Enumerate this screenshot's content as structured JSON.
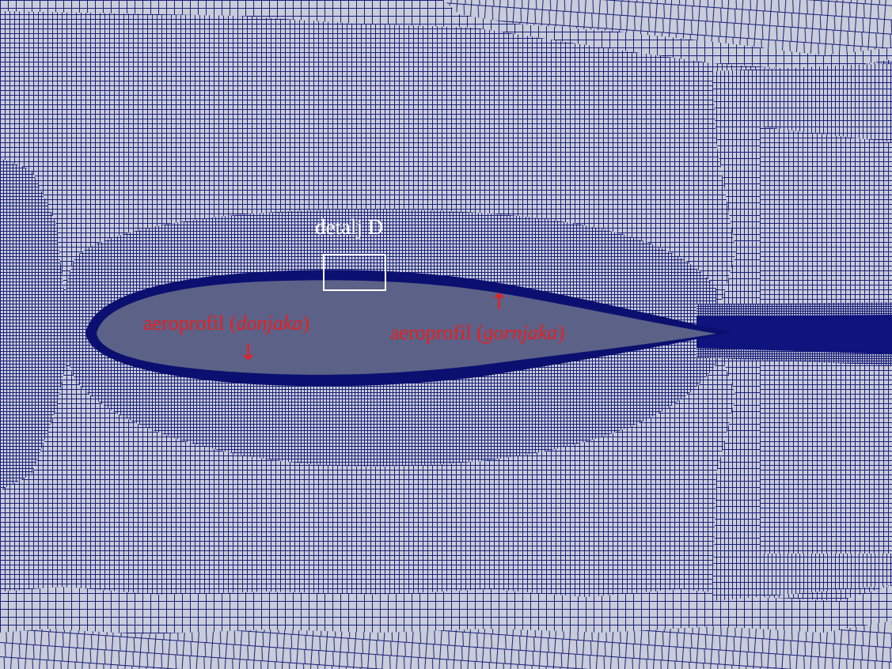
{
  "colors": {
    "mesh_line": "#1a1f7a",
    "mesh_background": "#c9ccd9",
    "wake_band": "#0f137d",
    "airfoil_fill": "#5c6187",
    "airfoil_boundary_layer": "#0b1070",
    "annotation_text": "#ee1c1c",
    "detail_box": "#ffffff"
  },
  "annotations": {
    "detail_label": "detalj D",
    "lower_surface": {
      "prefix": "aeroprofil (",
      "emphasis": "donjaka",
      "suffix": ")"
    },
    "upper_surface": {
      "prefix": "aeroprofil (",
      "emphasis": "gornjaka",
      "suffix": ")"
    }
  },
  "icons": {
    "lower_arrow": "arrow-down-icon",
    "upper_arrow": "arrow-up-icon"
  }
}
